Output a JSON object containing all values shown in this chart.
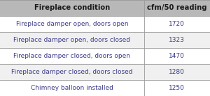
{
  "header": [
    "Fireplace condition",
    "cfm/50 reading"
  ],
  "rows": [
    [
      "Fireplace damper open, doors open",
      "1720"
    ],
    [
      "Fireplace damper open, doors closed",
      "1323"
    ],
    [
      "Fireplace damper closed, doors open",
      "1470"
    ],
    [
      "Fireplace damper closed, doors closed",
      "1280"
    ],
    [
      "Chimney balloon installed",
      "1250"
    ]
  ],
  "header_bg": "#b8b8b8",
  "row_bg_white": "#ffffff",
  "row_bg_gray": "#f0f0f0",
  "header_text_color": "#1a1a1a",
  "row_text_color": "#3a3a8a",
  "border_color": "#999999",
  "header_fontsize": 7.2,
  "row_fontsize": 6.5,
  "col_div": 0.685,
  "fig_width": 3.0,
  "fig_height": 1.38,
  "dpi": 100
}
